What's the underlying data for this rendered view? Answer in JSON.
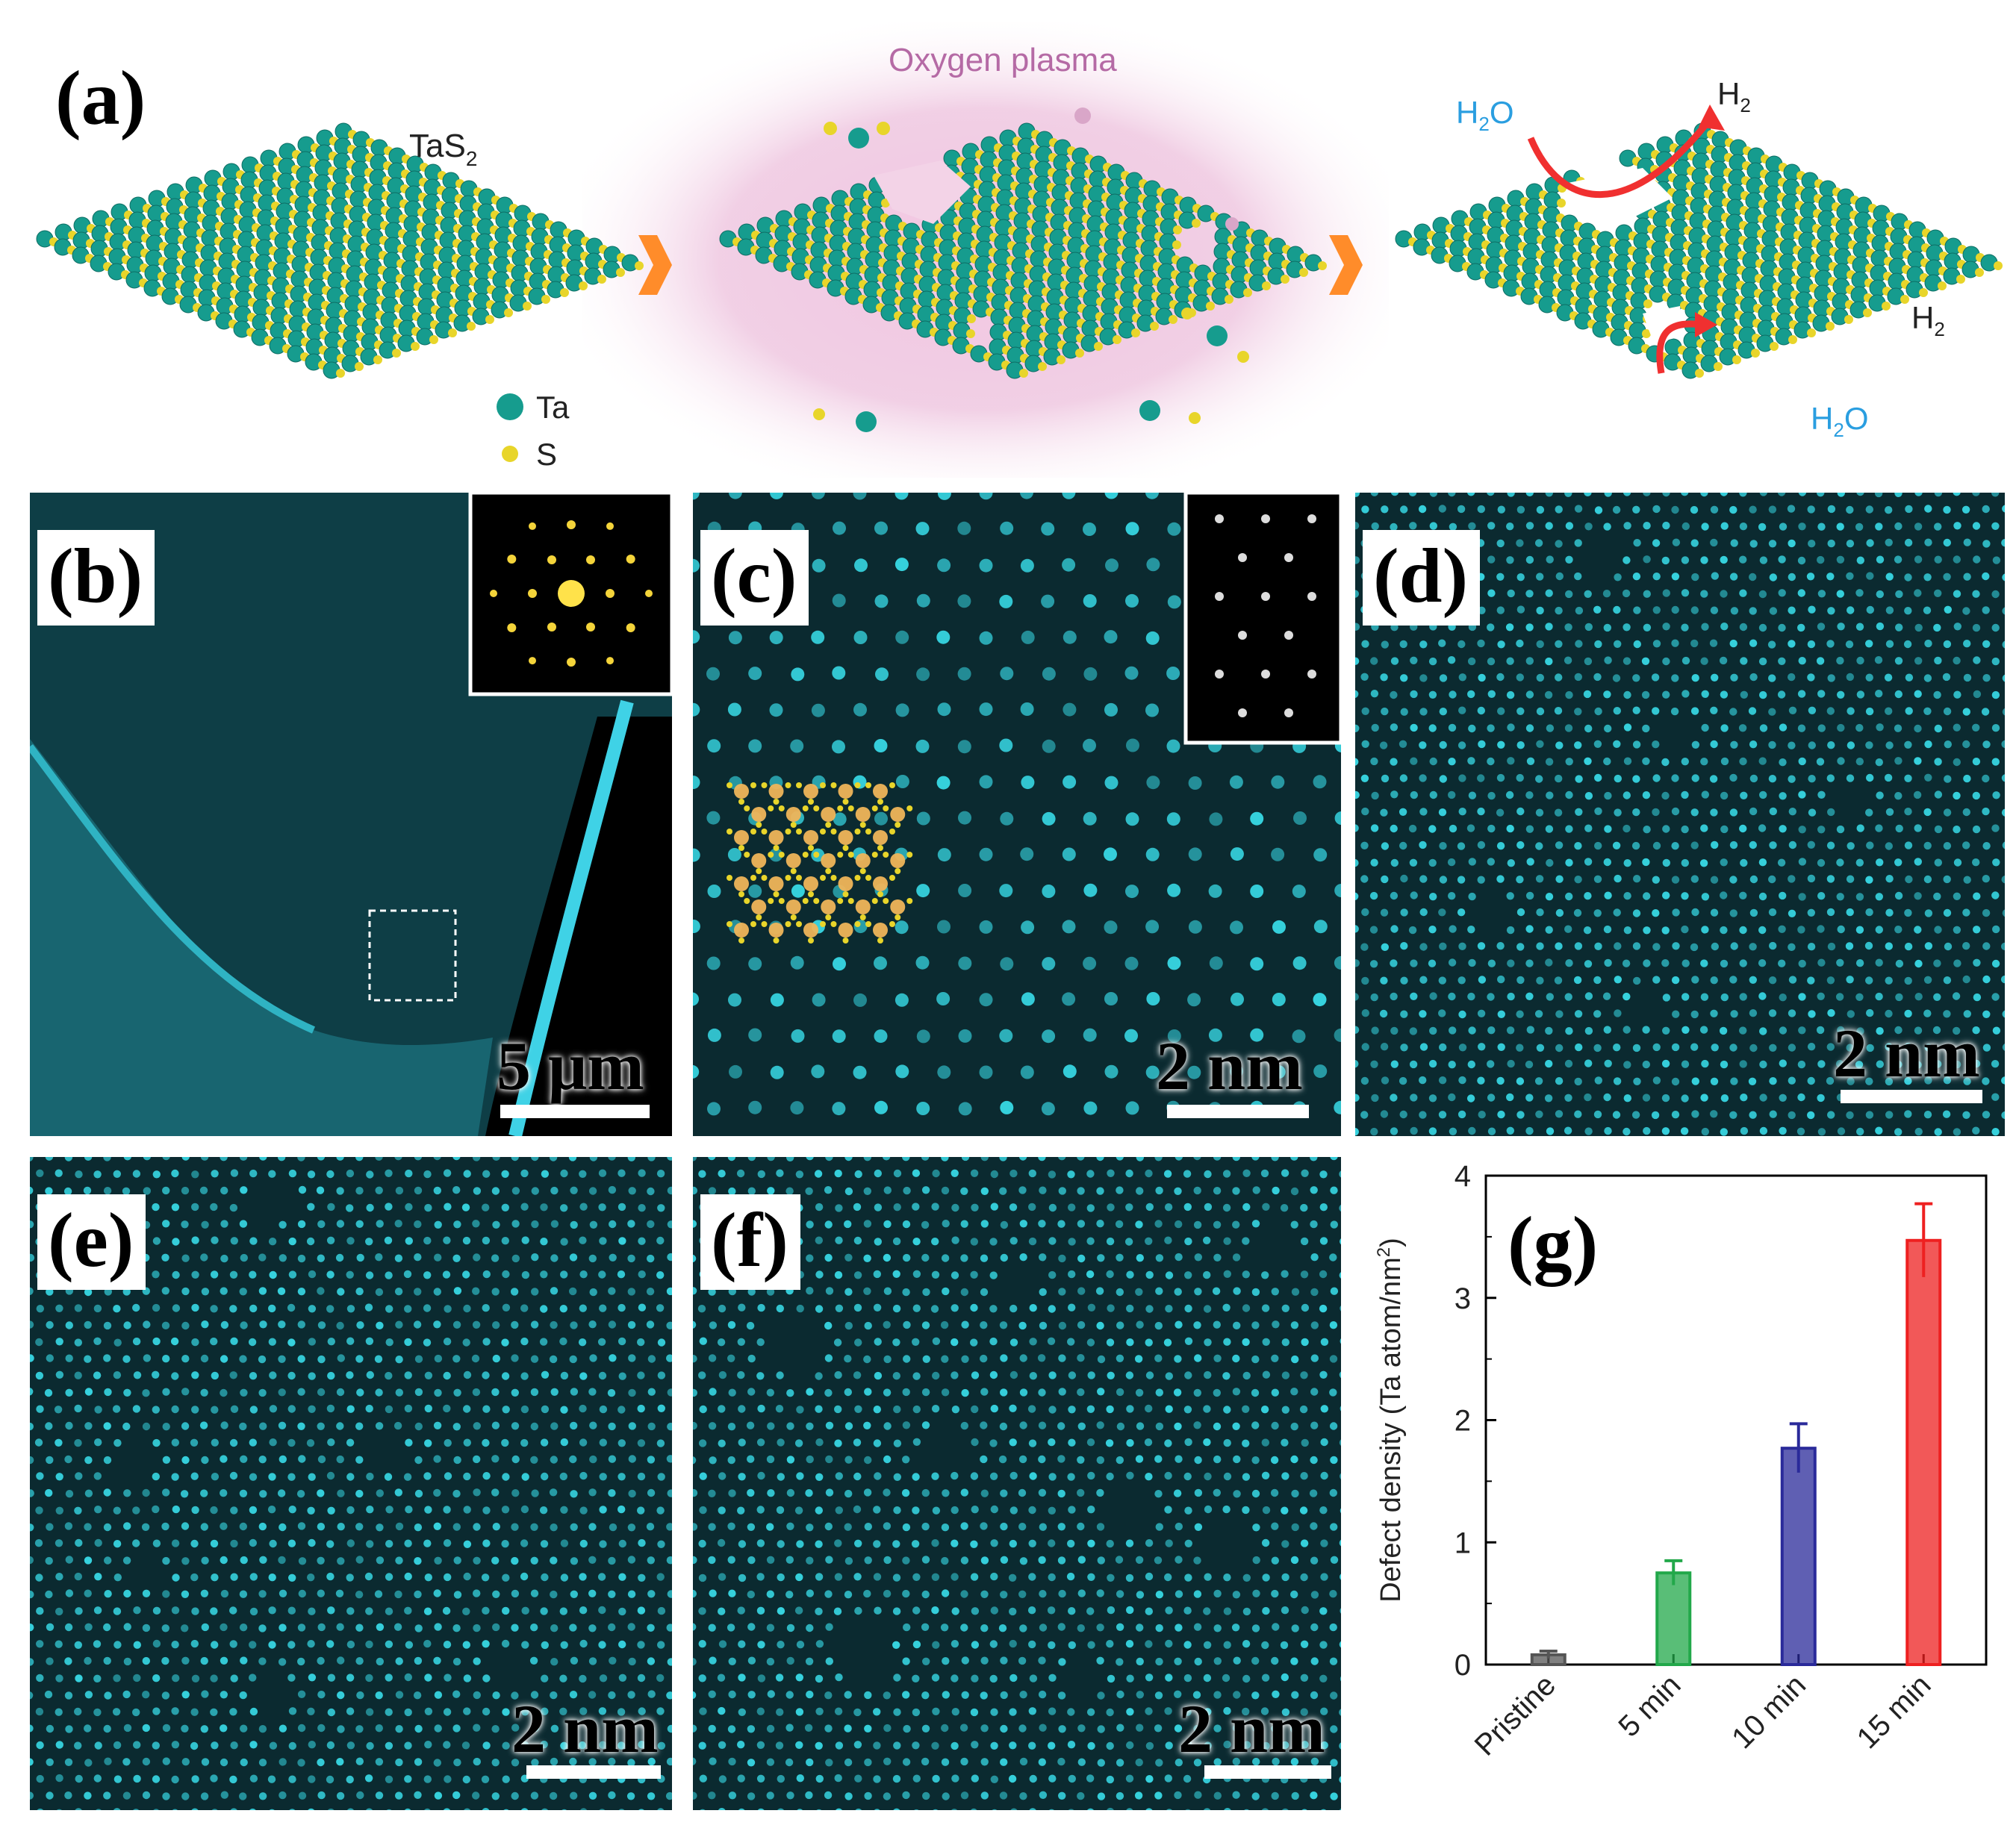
{
  "panels": {
    "a": {
      "label": "(a)",
      "material": "TaS",
      "material_sub": "2",
      "plasma": "Oxygen plasma",
      "legend": {
        "ta": "Ta",
        "s": "S"
      },
      "water": "H",
      "water_sub": "2",
      "water_tail": "O",
      "hydrogen": "H",
      "hydrogen_sub": "2"
    },
    "b": {
      "label": "(b)",
      "scale": "5 μm"
    },
    "c": {
      "label": "(c)",
      "scale": "2 nm"
    },
    "d": {
      "label": "(d)",
      "scale": "2 nm"
    },
    "e": {
      "label": "(e)",
      "scale": "2 nm"
    },
    "f": {
      "label": "(f)",
      "scale": "2 nm"
    },
    "g": {
      "label": "(g)"
    }
  },
  "colors": {
    "ta_atom": "#169c8e",
    "s_atom": "#e8d52a",
    "tem_bg": "#0b2a30",
    "tem_dot": "#36d2de",
    "arrow": "#ff8c2a",
    "plasma": "#e8a4cf",
    "water": "#2a9ee0",
    "reaction_arrow": "#f03030"
  },
  "chart_data": {
    "type": "bar",
    "categories": [
      "Pristine",
      "5 min",
      "10 min",
      "15 min"
    ],
    "values": [
      0.08,
      0.75,
      1.77,
      3.47
    ],
    "errors": [
      0.03,
      0.1,
      0.2,
      0.3
    ],
    "bar_colors": [
      "#555555",
      "#22a84a",
      "#2a2a9a",
      "#ee2020"
    ],
    "ylabel": "Defect density (Ta atom/nm",
    "ylabel_sup": "2",
    "ylabel_tail": ")",
    "ylim": [
      0,
      4
    ],
    "yticks": [
      "0",
      "1",
      "2",
      "3",
      "4"
    ]
  }
}
